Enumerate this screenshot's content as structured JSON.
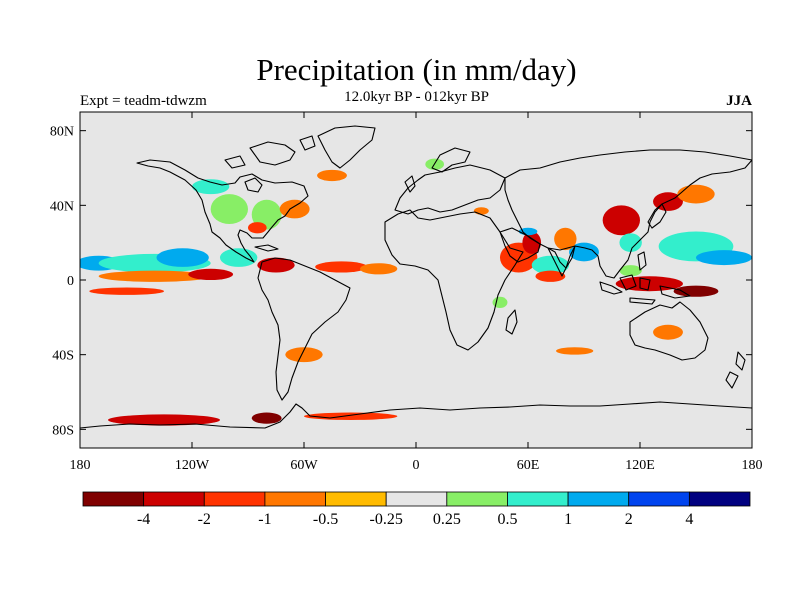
{
  "title": "Precipitation (in mm/day)",
  "subtitle": "12.0kyr BP - 012kyr BP",
  "experiment": "Expt = teadm-tdwzm",
  "season": "JJA",
  "map_data": {
    "type": "global precipitation anomaly map",
    "projection": "cylindrical equidistant",
    "lon_range": [
      -180,
      180
    ],
    "lat_range": [
      -90,
      90
    ],
    "lat_ticks": [
      {
        "value": 80,
        "label": "80N"
      },
      {
        "value": 40,
        "label": "40N"
      },
      {
        "value": 0,
        "label": "0"
      },
      {
        "value": -40,
        "label": "40S"
      },
      {
        "value": -80,
        "label": "80S"
      }
    ],
    "lon_ticks": [
      {
        "value": -180,
        "label": "180"
      },
      {
        "value": -120,
        "label": "120W"
      },
      {
        "value": -60,
        "label": "60W"
      },
      {
        "value": 0,
        "label": "0"
      },
      {
        "value": 60,
        "label": "60E"
      },
      {
        "value": 120,
        "label": "120E"
      },
      {
        "value": 180,
        "label": "180"
      }
    ],
    "background_color": "#e6e6e6",
    "anomaly_patches": [
      {
        "name": "pacific-itcz-wet",
        "lon": -170,
        "lat": 9,
        "rx": 12,
        "ry": 4,
        "level": 8
      },
      {
        "name": "pacific-itcz-wet",
        "lon": -140,
        "lat": 9,
        "rx": 30,
        "ry": 5,
        "level": 7
      },
      {
        "name": "pacific-itcz-wet",
        "lon": -125,
        "lat": 12,
        "rx": 14,
        "ry": 5,
        "level": 8
      },
      {
        "name": "pacific-itcz-wet",
        "lon": -95,
        "lat": 12,
        "rx": 10,
        "ry": 5,
        "level": 7
      },
      {
        "name": "pacific-itcz-dry",
        "lon": -140,
        "lat": 2,
        "rx": 30,
        "ry": 3,
        "level": 3
      },
      {
        "name": "pacific-itcz-dry",
        "lon": -110,
        "lat": 3,
        "rx": 12,
        "ry": 3,
        "level": 1
      },
      {
        "name": "caribbean-dry",
        "lon": -75,
        "lat": 8,
        "rx": 10,
        "ry": 4,
        "level": 1
      },
      {
        "name": "atlantic-itcz-dry",
        "lon": -40,
        "lat": 7,
        "rx": 14,
        "ry": 3,
        "level": 2
      },
      {
        "name": "atlantic-itcz-dry",
        "lon": -20,
        "lat": 6,
        "rx": 10,
        "ry": 3,
        "level": 3
      },
      {
        "name": "south-pacific-dry",
        "lon": -155,
        "lat": -6,
        "rx": 20,
        "ry": 2,
        "level": 2
      },
      {
        "name": "north-america-wet",
        "lon": -100,
        "lat": 38,
        "rx": 10,
        "ry": 8,
        "level": 6
      },
      {
        "name": "north-america-wet",
        "lon": -80,
        "lat": 35,
        "rx": 8,
        "ry": 8,
        "level": 6
      },
      {
        "name": "north-america-wet",
        "lon": -110,
        "lat": 50,
        "rx": 10,
        "ry": 4,
        "level": 7
      },
      {
        "name": "western-atlantic-dry",
        "lon": -65,
        "lat": 38,
        "rx": 8,
        "ry": 5,
        "level": 3
      },
      {
        "name": "gulf-dry",
        "lon": -85,
        "lat": 28,
        "rx": 5,
        "ry": 3,
        "level": 2
      },
      {
        "name": "greenland-wet",
        "lon": -45,
        "lat": 70,
        "rx": 10,
        "ry": 4,
        "level": 5
      },
      {
        "name": "north-atlantic-dry",
        "lon": -45,
        "lat": 56,
        "rx": 8,
        "ry": 3,
        "level": 3
      },
      {
        "name": "arctic-wet",
        "lon": -70,
        "lat": 82,
        "rx": 8,
        "ry": 3,
        "level": 5
      },
      {
        "name": "arctic-wet",
        "lon": 0,
        "lat": 70,
        "rx": 8,
        "ry": 3,
        "level": 5
      },
      {
        "name": "europe-wet",
        "lon": 10,
        "lat": 62,
        "rx": 5,
        "ry": 3,
        "level": 6
      },
      {
        "name": "siberia-wet",
        "lon": 80,
        "lat": 66,
        "rx": 8,
        "ry": 3,
        "level": 5
      },
      {
        "name": "arabian-sea-dry",
        "lon": 55,
        "lat": 12,
        "rx": 10,
        "ry": 8,
        "level": 2
      },
      {
        "name": "arabian-sea-dry",
        "lon": 62,
        "lat": 20,
        "rx": 5,
        "ry": 6,
        "level": 1
      },
      {
        "name": "arabian-sea-wet",
        "lon": 60,
        "lat": 26,
        "rx": 5,
        "ry": 2,
        "level": 8
      },
      {
        "name": "indian-ocean-mixed",
        "lon": 72,
        "lat": 8,
        "rx": 10,
        "ry": 5,
        "level": 7
      },
      {
        "name": "indian-ocean-mixed",
        "lon": 72,
        "lat": 2,
        "rx": 8,
        "ry": 3,
        "level": 2
      },
      {
        "name": "bay-of-bengal-wet",
        "lon": 90,
        "lat": 15,
        "rx": 8,
        "ry": 5,
        "level": 8
      },
      {
        "name": "india-dry",
        "lon": 80,
        "lat": 22,
        "rx": 6,
        "ry": 6,
        "level": 3
      },
      {
        "name": "east-asia-dry",
        "lon": 110,
        "lat": 32,
        "rx": 10,
        "ry": 8,
        "level": 1
      },
      {
        "name": "east-asia-wet",
        "lon": 115,
        "lat": 20,
        "rx": 6,
        "ry": 5,
        "level": 7
      },
      {
        "name": "west-pacific-wet",
        "lon": 150,
        "lat": 18,
        "rx": 20,
        "ry": 8,
        "level": 7
      },
      {
        "name": "west-pacific-wet",
        "lon": 165,
        "lat": 12,
        "rx": 15,
        "ry": 4,
        "level": 8
      },
      {
        "name": "japan-dry",
        "lon": 135,
        "lat": 42,
        "rx": 8,
        "ry": 5,
        "level": 1
      },
      {
        "name": "north-pacific-dry",
        "lon": 150,
        "lat": 46,
        "rx": 10,
        "ry": 5,
        "level": 3
      },
      {
        "name": "maritime-continent-dry",
        "lon": 125,
        "lat": -2,
        "rx": 18,
        "ry": 4,
        "level": 1
      },
      {
        "name": "maritime-continent-dry",
        "lon": 150,
        "lat": -6,
        "rx": 12,
        "ry": 3,
        "level": 0
      },
      {
        "name": "maritime-continent-wet",
        "lon": 115,
        "lat": 5,
        "rx": 6,
        "ry": 3,
        "level": 6
      },
      {
        "name": "southern-ocean-wet",
        "lon": -120,
        "lat": -38,
        "rx": 20,
        "ry": 2,
        "level": 5
      },
      {
        "name": "southern-ocean-wet",
        "lon": -20,
        "lat": -42,
        "rx": 10,
        "ry": 2,
        "level": 5
      },
      {
        "name": "south-pacific-dry",
        "lon": 135,
        "lat": -28,
        "rx": 8,
        "ry": 4,
        "level": 3
      },
      {
        "name": "south-atlantic-dry",
        "lon": -60,
        "lat": -40,
        "rx": 10,
        "ry": 4,
        "level": 3
      },
      {
        "name": "south-indian-dry",
        "lon": 85,
        "lat": -38,
        "rx": 10,
        "ry": 2,
        "level": 3
      },
      {
        "name": "south-indian-wet",
        "lon": 15,
        "lat": -35,
        "rx": 8,
        "ry": 3,
        "level": 5
      },
      {
        "name": "antarctic-wet",
        "lon": -160,
        "lat": -68,
        "rx": 20,
        "ry": 2,
        "level": 5
      },
      {
        "name": "antarctic-dry",
        "lon": -135,
        "lat": -75,
        "rx": 30,
        "ry": 3,
        "level": 1
      },
      {
        "name": "antarctic-dry",
        "lon": -35,
        "lat": -73,
        "rx": 25,
        "ry": 2,
        "level": 2
      },
      {
        "name": "antarctic-dry",
        "lon": -80,
        "lat": -74,
        "rx": 8,
        "ry": 3,
        "level": 0
      },
      {
        "name": "antarctic-wet",
        "lon": 30,
        "lat": -68,
        "rx": 10,
        "ry": 2,
        "level": 5
      },
      {
        "name": "mediterranean-dry",
        "lon": 35,
        "lat": 37,
        "rx": 4,
        "ry": 2,
        "level": 3
      },
      {
        "name": "africa-wet",
        "lon": 45,
        "lat": -12,
        "rx": 4,
        "ry": 3,
        "level": 6
      }
    ]
  },
  "colorbar": {
    "colors": [
      "#800000",
      "#cc0000",
      "#ff3300",
      "#ff7700",
      "#ffbb00",
      "#e6e6e6",
      "#88ee66",
      "#33eecc",
      "#00aaee",
      "#0044ee",
      "#000080"
    ],
    "tick_labels": [
      "-4",
      "-2",
      "-1",
      "-0.5",
      "-0.25",
      "0.25",
      "0.5",
      "1",
      "2",
      "4"
    ]
  }
}
